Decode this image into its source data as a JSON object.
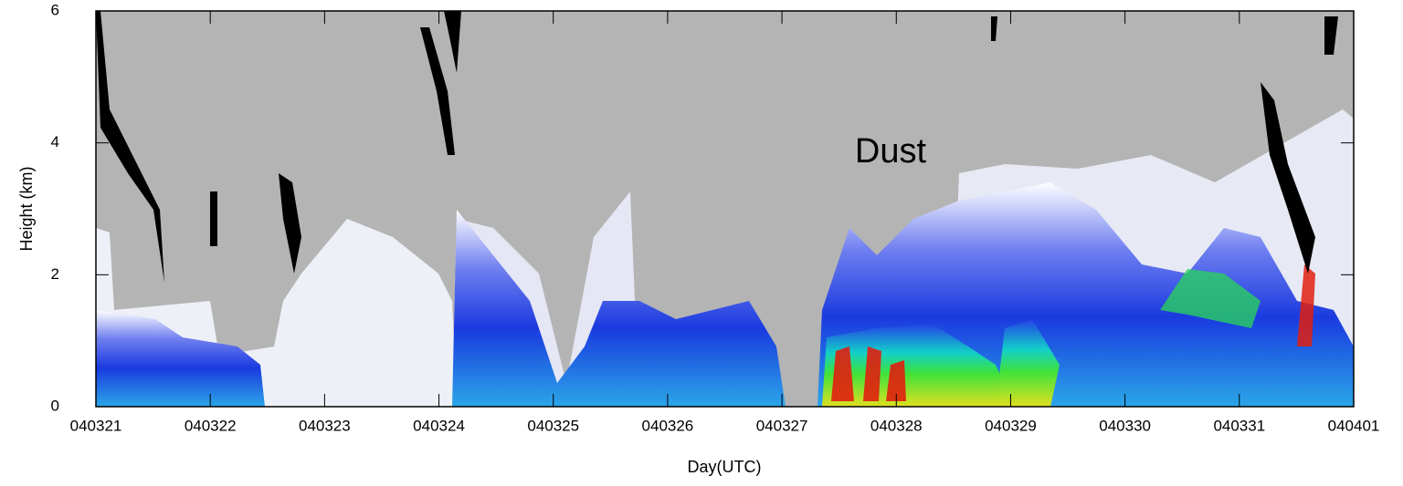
{
  "chart_data": {
    "type": "time-height",
    "x_label": "Day(UTC)",
    "y_label": "Height (km)",
    "categories": [
      "040321",
      "040322",
      "040323",
      "040324",
      "040325",
      "040326",
      "040327",
      "040328",
      "040329",
      "040330",
      "040331",
      "040401"
    ],
    "ylim": [
      0,
      6
    ],
    "yticks": [
      0,
      2,
      4,
      6
    ],
    "annotation": "Dust",
    "annotation_color": "#ff0000"
  }
}
